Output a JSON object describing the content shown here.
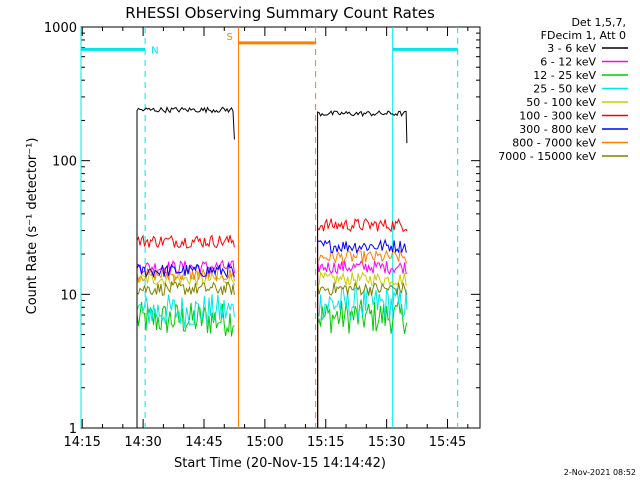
{
  "chart_data": {
    "type": "line",
    "title": "RHESSI Observing Summary Count Rates",
    "xlabel": "Start Time (20-Nov-15 14:14:42)",
    "ylabel": "Count Rate (s⁻¹ detector⁻¹)",
    "yscale": "log",
    "ylim": [
      1,
      1000
    ],
    "xlim": [
      "14:14:42",
      "15:53:00"
    ],
    "x_ticks": [
      "14:15",
      "14:30",
      "14:45",
      "15:00",
      "15:15",
      "15:30",
      "15:45"
    ],
    "y_ticks": [
      "1",
      "10",
      "100",
      "1000"
    ],
    "legend_header": [
      "Det 1,5,7,",
      "FDecim 1, Att 0"
    ],
    "legend_position": "top-right, outside plot",
    "timestamp": "2-Nov-2021 08:52",
    "segments": [
      {
        "start": "14:28:30",
        "end": "14:52:30"
      },
      {
        "start": "15:13:00",
        "end": "15:35:00"
      }
    ],
    "series": [
      {
        "name": "3 - 6 keV",
        "color": "#000000",
        "values": [
          240,
          225
        ]
      },
      {
        "name": "6 - 12 keV",
        "color": "#ff00ff",
        "values": [
          16,
          16
        ]
      },
      {
        "name": "12 - 25 keV",
        "color": "#00cc00",
        "values": [
          6.5,
          6.8
        ]
      },
      {
        "name": "25 - 50 keV",
        "color": "#00e5e5",
        "values": [
          7.5,
          8.5
        ]
      },
      {
        "name": "50 - 100 keV",
        "color": "#cccc00",
        "values": [
          13,
          13
        ]
      },
      {
        "name": "100 - 300 keV",
        "color": "#ff0000",
        "values": [
          25,
          33
        ]
      },
      {
        "name": "300 - 800 keV",
        "color": "#0000ff",
        "values": [
          15,
          23
        ]
      },
      {
        "name": "800 - 7000 keV",
        "color": "#ff7f00",
        "values": [
          14,
          19
        ]
      },
      {
        "name": "7000 - 15000 keV",
        "color": "#808000",
        "values": [
          11,
          11
        ]
      }
    ],
    "flags": [
      {
        "label": "N",
        "color": "#00e5e5",
        "ranges": [
          [
            "14:14:42",
            "14:30:30"
          ],
          [
            "15:31:30",
            "15:47:30"
          ]
        ],
        "level": 680
      },
      {
        "label": "S",
        "color": "#ff7f00",
        "ranges": [
          [
            "14:53:30",
            "15:12:30"
          ]
        ],
        "level": 760
      }
    ],
    "vlines": [
      {
        "time": "14:14:42",
        "color": "#00e5e5",
        "style": "solid"
      },
      {
        "time": "14:30:30",
        "color": "#00e5e5",
        "style": "dashed"
      },
      {
        "time": "14:53:30",
        "color": "#ff7f00",
        "style": "solid"
      },
      {
        "time": "15:12:30",
        "color": "#ff7f00",
        "style": "dashed"
      },
      {
        "time": "15:31:30",
        "color": "#00e5e5",
        "style": "solid"
      },
      {
        "time": "15:47:30",
        "color": "#00e5e5",
        "style": "dashed"
      }
    ]
  }
}
